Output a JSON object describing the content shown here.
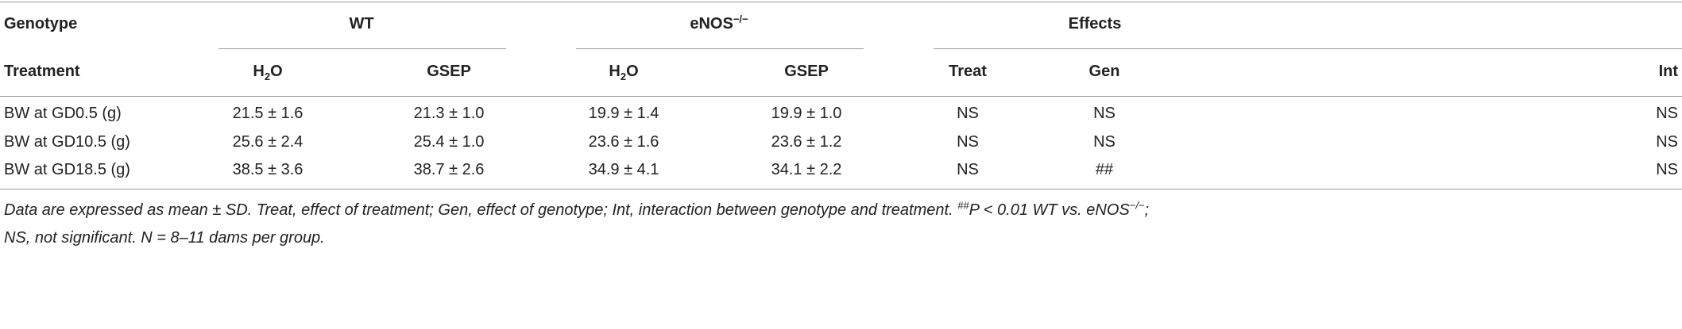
{
  "header": {
    "genotype": "Genotype",
    "treatment": "Treatment",
    "groups": [
      [
        {
          "text": "WT"
        }
      ],
      [
        {
          "text": "eNOS"
        },
        {
          "text": "−/−",
          "sup": true
        }
      ],
      [
        {
          "text": "Effects"
        }
      ]
    ],
    "subcolumns": [
      [
        {
          "text": "H"
        },
        {
          "text": "2",
          "sub": true
        },
        {
          "text": "O"
        }
      ],
      [
        {
          "text": "GSEP"
        }
      ],
      [
        {
          "text": "H"
        },
        {
          "text": "2",
          "sub": true
        },
        {
          "text": "O"
        }
      ],
      [
        {
          "text": "GSEP"
        }
      ],
      [
        {
          "text": "Treat"
        }
      ],
      [
        {
          "text": "Gen"
        }
      ],
      [
        {
          "text": "Int"
        }
      ]
    ]
  },
  "rows": [
    [
      "BW at GD0.5 (g)",
      "21.5 ± 1.6",
      "21.3 ± 1.0",
      "19.9 ± 1.4",
      "19.9 ± 1.0",
      "NS",
      "NS",
      "NS"
    ],
    [
      "BW at GD10.5 (g)",
      "25.6 ± 2.4",
      "25.4 ± 1.0",
      "23.6 ± 1.6",
      "23.6 ± 1.2",
      "NS",
      "NS",
      "NS"
    ],
    [
      "BW at GD18.5 (g)",
      "38.5 ± 3.6",
      "38.7 ± 2.6",
      "34.9 ± 4.1",
      "34.1 ± 2.2",
      "NS",
      "##",
      "NS"
    ]
  ],
  "footnote": [
    [
      {
        "text": "Data are expressed as mean ± SD. Treat, effect of treatment; Gen, effect of genotype; Int, interaction between genotype and treatment. "
      },
      {
        "text": "##",
        "sup": true
      },
      {
        "text": "P < 0.01 WT vs. eNOS"
      },
      {
        "text": "−/−",
        "sup": true
      },
      {
        "text": ";"
      }
    ],
    [
      {
        "text": "NS, not significant. N = 8–11 dams per group."
      }
    ]
  ]
}
